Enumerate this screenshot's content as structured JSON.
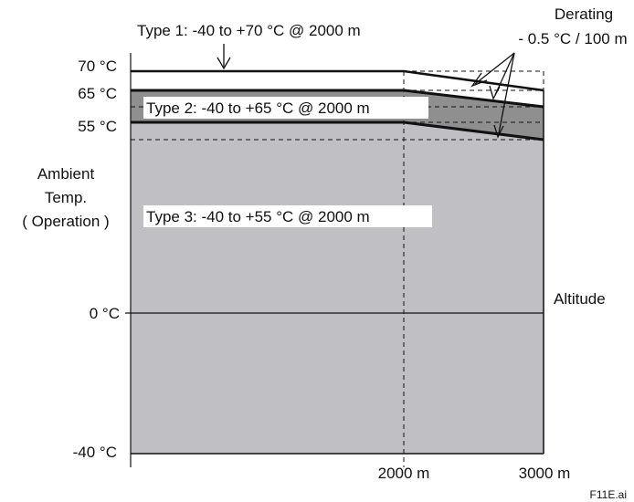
{
  "chart_data": {
    "type": "area",
    "x_unit": "m",
    "y_unit": "°C",
    "x_range": [
      0,
      3000
    ],
    "y_range": [
      -40,
      70
    ],
    "y_ticks": [
      {
        "value": 70,
        "label": "70 °C"
      },
      {
        "value": 65,
        "label": "65 °C"
      },
      {
        "value": 55,
        "label": "55 °C"
      },
      {
        "value": 0,
        "label": "0 °C"
      },
      {
        "value": -40,
        "label": "-40 °C"
      }
    ],
    "x_ticks": [
      {
        "value": 2000,
        "label": "2000 m"
      },
      {
        "value": 3000,
        "label": "3000 m"
      }
    ],
    "y_label_lines": [
      "Ambient",
      "Temp.",
      "( Operation )"
    ],
    "x_label": "Altitude",
    "series": [
      {
        "name": "Type 1: -40 to +70 °C @ 2000 m",
        "points": [
          [
            0,
            70
          ],
          [
            2000,
            70
          ],
          [
            3000,
            65
          ]
        ]
      },
      {
        "name": "Type 2: -40 to +65 °C @ 2000 m",
        "points": [
          [
            0,
            65
          ],
          [
            2000,
            65
          ],
          [
            3000,
            60
          ]
        ]
      },
      {
        "name": "Type 3: -40 to +55 °C @ 2000 m",
        "points": [
          [
            0,
            55
          ],
          [
            2000,
            55
          ],
          [
            3000,
            50
          ]
        ]
      }
    ],
    "annotation": {
      "lines": [
        "Derating",
        "- 0.5 °C / 100 m"
      ],
      "derating_per_100m": -0.5
    },
    "file_label": "F11E.ai",
    "colors": {
      "type2_fill": "#8f8f8f",
      "type3_fill": "#c0c0c4",
      "line": "#111111"
    }
  }
}
